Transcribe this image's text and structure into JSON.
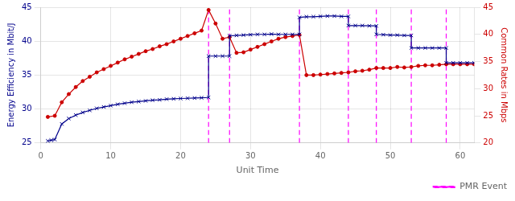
{
  "chart_data": {
    "type": "line",
    "xlabel": "Unit Time",
    "ylabel": "Energy Efficiency in Mbit/J",
    "y2label": "Common Rates in Mbps",
    "xlim": [
      0,
      62
    ],
    "xticks": [
      0,
      10,
      20,
      30,
      40,
      50,
      60
    ],
    "ylim": [
      25,
      45
    ],
    "yticks": [
      25,
      30,
      35,
      40,
      45
    ],
    "y2lim": [
      20,
      45
    ],
    "y2ticks": [
      20,
      25,
      30,
      35,
      40,
      45
    ],
    "grid": true,
    "legend": "lower right",
    "series": [
      {
        "color": "#00008B",
        "marker": "x",
        "axis": "y",
        "x": [
          1,
          1.5,
          2,
          3,
          4,
          5,
          6,
          7,
          8,
          9,
          10,
          11,
          12,
          13,
          14,
          15,
          16,
          17,
          18,
          19,
          20,
          21,
          22,
          23,
          24,
          24,
          25,
          26,
          27,
          27,
          28,
          29,
          30,
          31,
          32,
          33,
          34,
          35,
          36,
          37,
          37,
          38,
          39,
          40,
          41,
          42,
          43,
          44,
          44,
          45,
          46,
          47,
          48,
          48,
          49,
          50,
          51,
          52,
          53,
          53,
          54,
          55,
          56,
          57,
          58,
          58,
          59,
          60,
          61,
          62
        ],
        "values": [
          25.3,
          25.4,
          25.5,
          27.8,
          28.6,
          29.1,
          29.5,
          29.8,
          30.1,
          30.3,
          30.5,
          30.7,
          30.85,
          31.0,
          31.1,
          31.2,
          31.3,
          31.35,
          31.45,
          31.5,
          31.55,
          31.58,
          31.62,
          31.65,
          31.7,
          37.8,
          37.8,
          37.8,
          37.8,
          40.8,
          40.85,
          40.9,
          40.95,
          41.0,
          41.0,
          41.05,
          41.0,
          41.0,
          41.0,
          41.0,
          43.5,
          43.6,
          43.6,
          43.65,
          43.7,
          43.7,
          43.65,
          43.65,
          42.3,
          42.3,
          42.3,
          42.25,
          42.25,
          41.0,
          40.95,
          40.9,
          40.9,
          40.85,
          40.85,
          39.0,
          39.0,
          39.0,
          39.0,
          39.0,
          39.0,
          36.8,
          36.8,
          36.8,
          36.8,
          36.8
        ]
      },
      {
        "color": "#CC0000",
        "marker": "circle",
        "axis": "y2",
        "x": [
          1,
          2,
          3,
          4,
          5,
          6,
          7,
          8,
          9,
          10,
          11,
          12,
          13,
          14,
          15,
          16,
          17,
          18,
          19,
          20,
          21,
          22,
          23,
          24,
          25,
          26,
          27,
          28,
          29,
          30,
          31,
          32,
          33,
          34,
          35,
          36,
          37,
          38,
          39,
          40,
          41,
          42,
          43,
          44,
          45,
          46,
          47,
          48,
          49,
          50,
          51,
          52,
          53,
          54,
          55,
          56,
          57,
          58,
          59,
          60,
          61,
          62
        ],
        "values": [
          24.8,
          25.0,
          27.5,
          29.0,
          30.3,
          31.4,
          32.2,
          33.0,
          33.6,
          34.2,
          34.8,
          35.4,
          35.9,
          36.4,
          36.9,
          37.3,
          37.8,
          38.2,
          38.7,
          39.2,
          39.7,
          40.2,
          40.7,
          44.5,
          42.0,
          39.2,
          39.5,
          36.6,
          36.7,
          37.2,
          37.7,
          38.2,
          38.7,
          39.2,
          39.5,
          39.7,
          39.9,
          32.5,
          32.5,
          32.6,
          32.7,
          32.8,
          32.9,
          33.0,
          33.2,
          33.3,
          33.5,
          33.8,
          33.8,
          33.8,
          34.0,
          33.9,
          34.0,
          34.2,
          34.3,
          34.3,
          34.4,
          34.5,
          34.5,
          34.5,
          34.5,
          34.5
        ]
      },
      {
        "name": "PMR Event",
        "type": "vline",
        "color": "#FF00FF",
        "line_style": "dashed",
        "axis": "y",
        "x": [
          24,
          27,
          37,
          44,
          48,
          53,
          58
        ]
      }
    ]
  }
}
